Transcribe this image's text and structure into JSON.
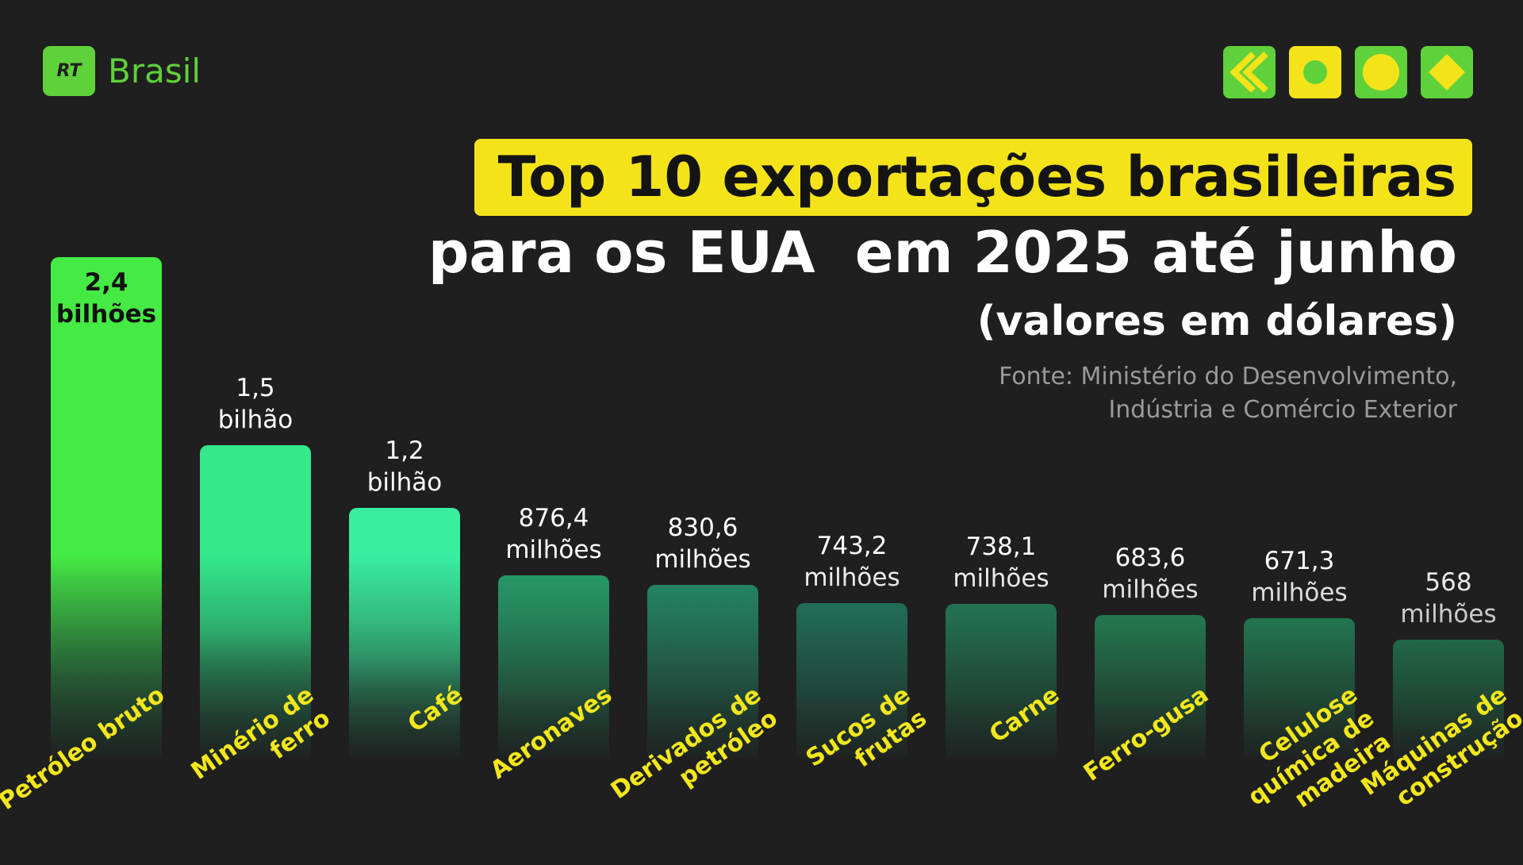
{
  "brand": {
    "badge": "RT",
    "name": "Brasil"
  },
  "chart_data": {
    "type": "bar",
    "title": "Top 10 exportações brasileiras",
    "subtitle": "para os EUA  em 2025 até junho",
    "unit_note": "(valores em dólares)",
    "source": [
      "Fonte: Ministério do Desenvolvimento,",
      "Indústria e Comércio Exterior"
    ],
    "categories": [
      "Petróleo bruto",
      "Minério de ferro",
      "Café",
      "Aeronaves",
      "Derivados de petróleo",
      "Sucos de frutas",
      "Carne",
      "Ferro-gusa",
      "Celulose química de madeira",
      "Máquinas de construção"
    ],
    "values": [
      2400,
      1500,
      1200,
      876.4,
      830.6,
      743.2,
      738.1,
      683.6,
      671.3,
      568
    ],
    "value_labels": [
      "2,4 bilhões",
      "1,5 bilhão",
      "1,2 bilhão",
      "876,4 milhões",
      "830,6 milhões",
      "743,2 milhões",
      "738,1 milhões",
      "683,6 milhões",
      "671,3 milhões",
      "568 milhões"
    ],
    "colors": [
      "#46ea44",
      "#34e88c",
      "#3aeea0",
      "#27a26c",
      "#248f6a",
      "#227f64",
      "#23865f",
      "#24935f",
      "#23915f",
      "#22905e"
    ],
    "ylim": [
      0,
      2400
    ]
  }
}
